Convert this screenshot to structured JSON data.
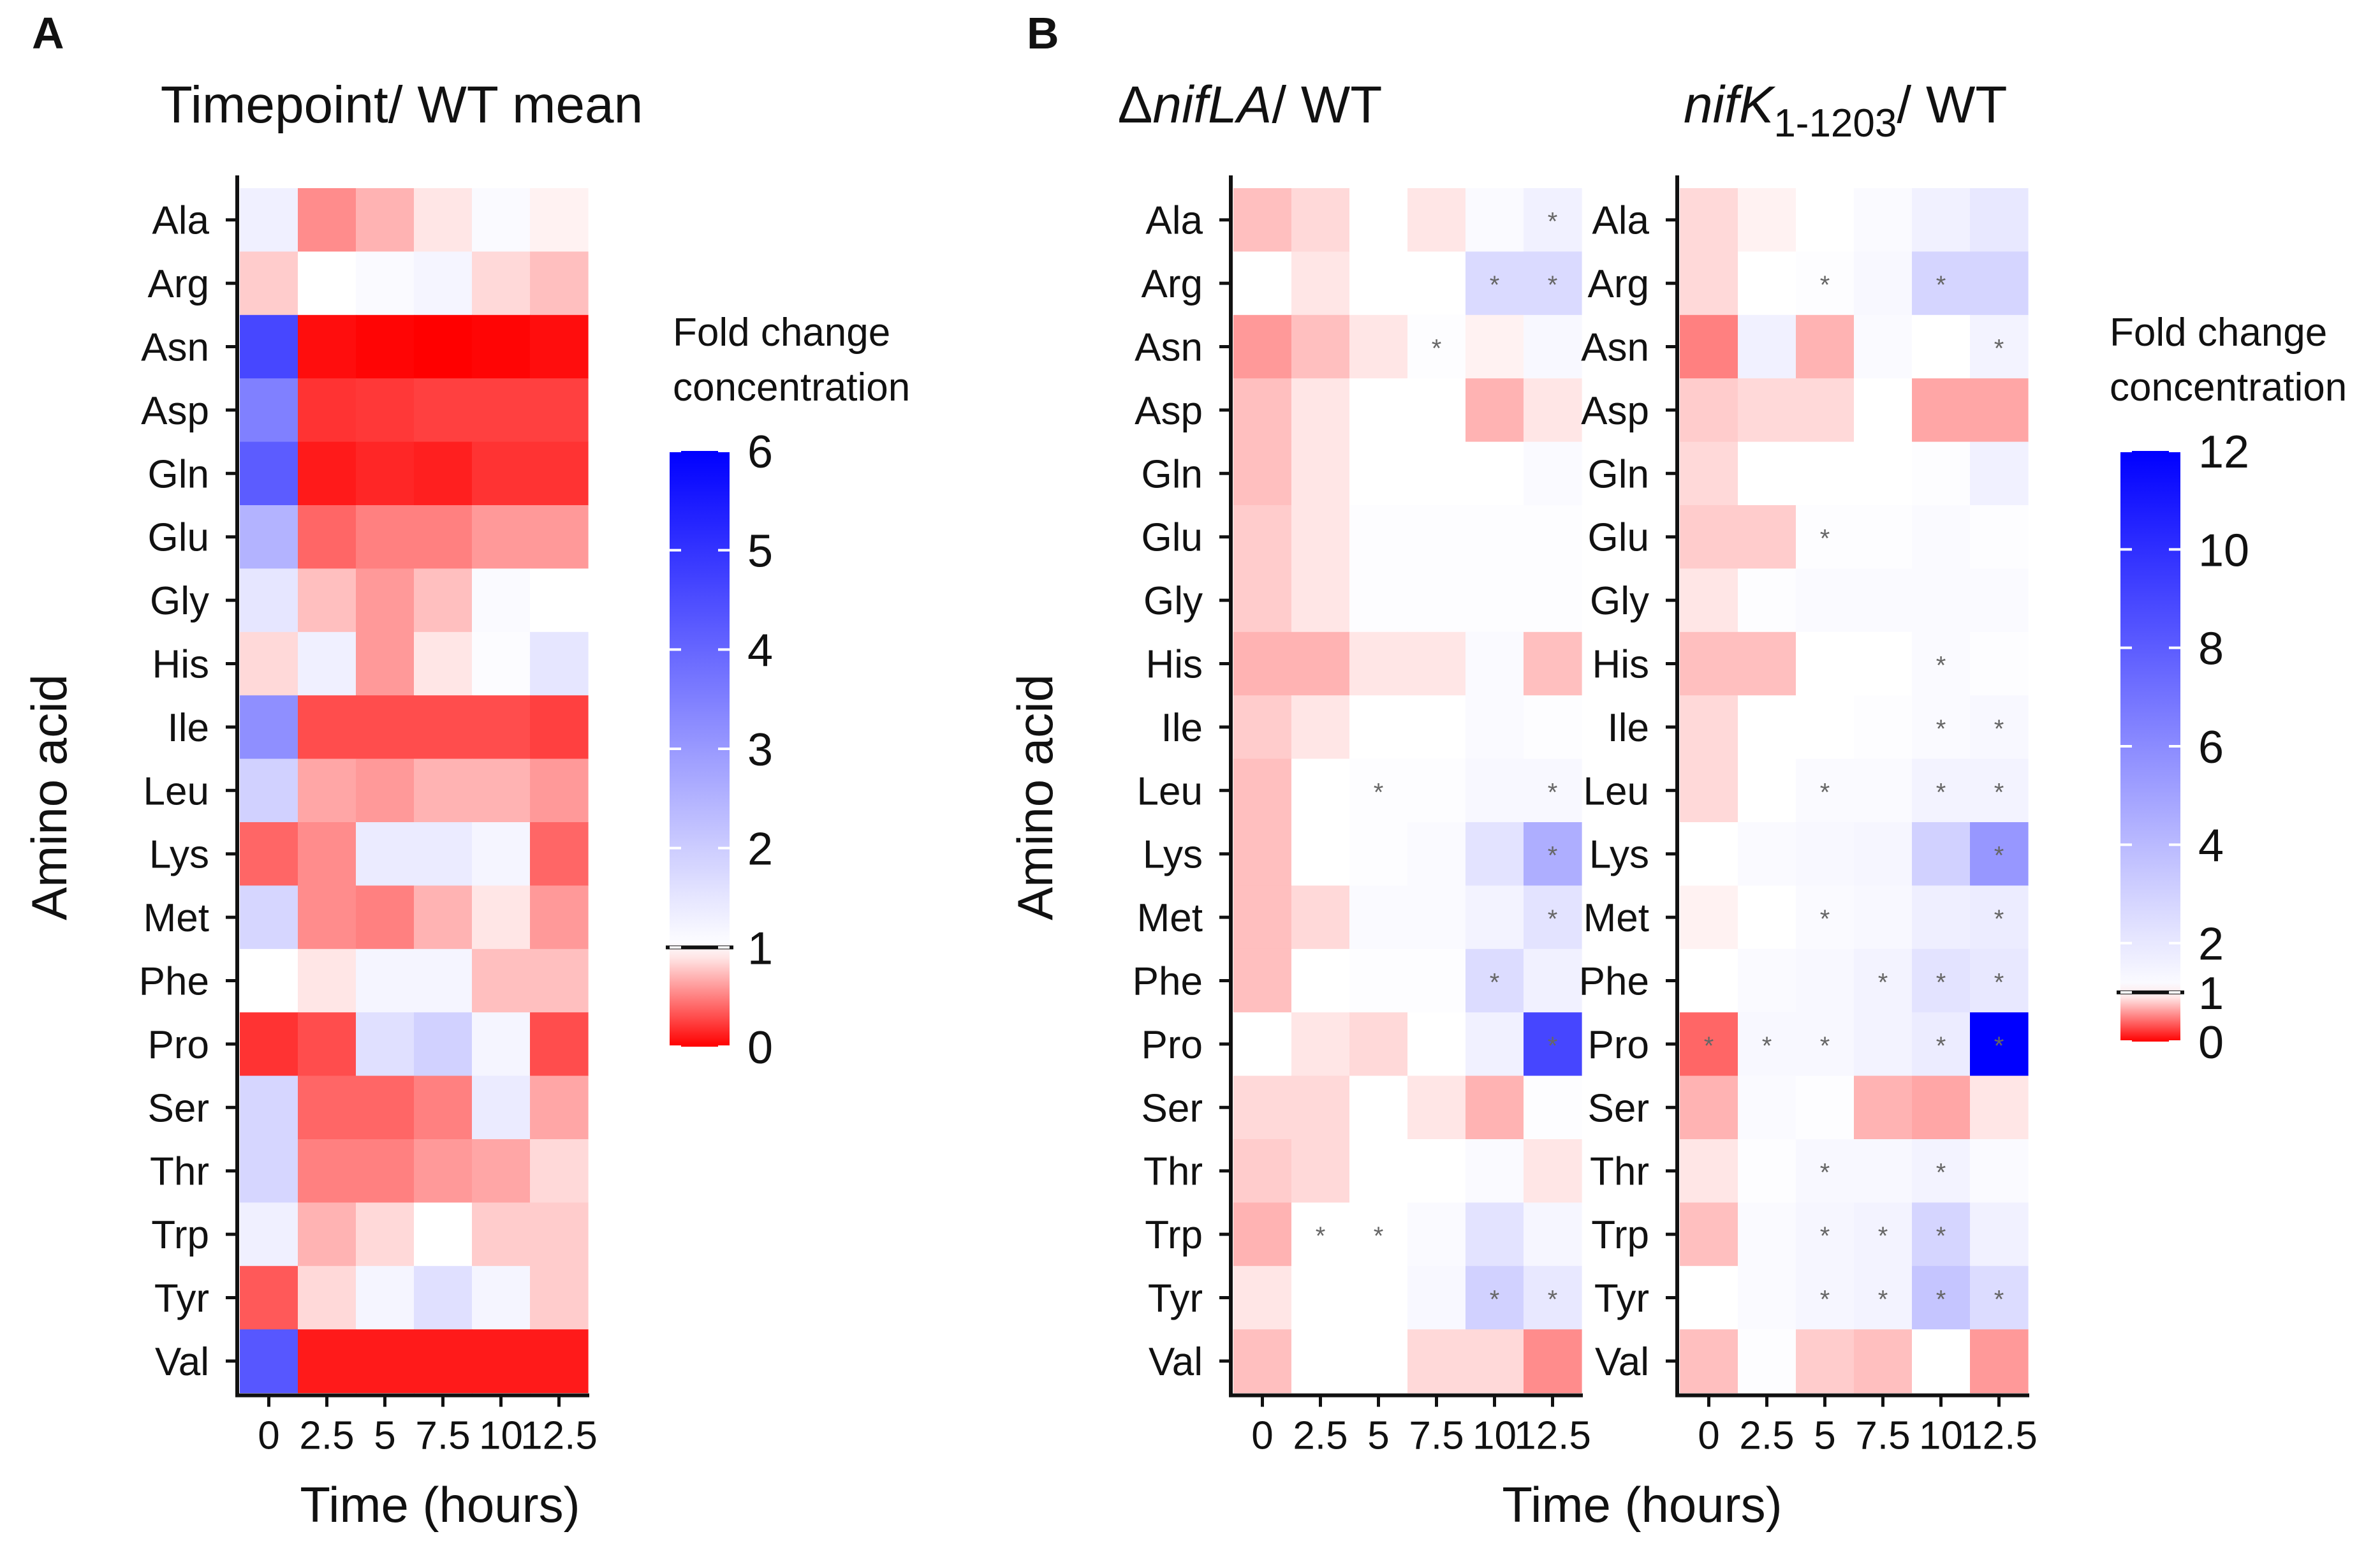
{
  "chart_data": [
    {
      "panel": "A",
      "type": "heatmap",
      "title": "Timepoint/ WT mean",
      "xlabel": "Time (hours)",
      "ylabel": "Amino acid",
      "x": [
        "0",
        "2.5",
        "5",
        "7.5",
        "10",
        "12.5"
      ],
      "y": [
        "Ala",
        "Arg",
        "Asn",
        "Asp",
        "Gln",
        "Glu",
        "Gly",
        "His",
        "Ile",
        "Leu",
        "Lys",
        "Met",
        "Phe",
        "Pro",
        "Ser",
        "Thr",
        "Trp",
        "Tyr",
        "Val"
      ],
      "values": [
        [
          1.3,
          0.55,
          0.7,
          0.9,
          1.1,
          0.95
        ],
        [
          0.8,
          1.0,
          1.1,
          1.2,
          0.85,
          0.75
        ],
        [
          4.6,
          0.05,
          0.02,
          0.0,
          0.02,
          0.05
        ],
        [
          3.5,
          0.2,
          0.22,
          0.25,
          0.25,
          0.25
        ],
        [
          4.2,
          0.1,
          0.15,
          0.12,
          0.2,
          0.2
        ],
        [
          2.5,
          0.4,
          0.5,
          0.5,
          0.6,
          0.6
        ],
        [
          1.5,
          0.75,
          0.6,
          0.75,
          1.1,
          1.0
        ],
        [
          0.85,
          1.3,
          0.6,
          0.9,
          1.05,
          1.5
        ],
        [
          3.2,
          0.3,
          0.3,
          0.3,
          0.3,
          0.25
        ],
        [
          1.9,
          0.65,
          0.6,
          0.7,
          0.7,
          0.6
        ],
        [
          0.4,
          0.55,
          1.4,
          1.4,
          1.2,
          0.4
        ],
        [
          1.8,
          0.55,
          0.5,
          0.7,
          0.9,
          0.6
        ],
        [
          1.0,
          0.9,
          1.2,
          1.2,
          0.75,
          0.75
        ],
        [
          0.2,
          0.3,
          1.6,
          1.9,
          1.2,
          0.3
        ],
        [
          1.8,
          0.4,
          0.4,
          0.5,
          1.4,
          0.65
        ],
        [
          1.8,
          0.5,
          0.5,
          0.6,
          0.65,
          0.85
        ],
        [
          1.3,
          0.7,
          0.85,
          1.0,
          0.8,
          0.8
        ],
        [
          0.35,
          0.85,
          1.2,
          1.6,
          1.2,
          0.8
        ],
        [
          4.3,
          0.1,
          0.1,
          0.1,
          0.1,
          0.1
        ]
      ],
      "colorbar": {
        "title": [
          "Fold change",
          "concentration"
        ],
        "min": 0,
        "max": 6,
        "mid": 1,
        "ticks": [
          0,
          1,
          2,
          3,
          4,
          5,
          6
        ],
        "low_color": "#ff0000",
        "mid_color": "#ffffff",
        "high_color": "#0000ff"
      }
    },
    {
      "panel": "B",
      "type": "heatmap",
      "title": {
        "prefix": "Δ",
        "italic": "nifLA",
        "suffix": "/ WT"
      },
      "xlabel": "Time (hours)",
      "ylabel": "Amino acid",
      "x": [
        "0",
        "2.5",
        "5",
        "7.5",
        "10",
        "12.5"
      ],
      "y": [
        "Ala",
        "Arg",
        "Asn",
        "Asp",
        "Gln",
        "Glu",
        "Gly",
        "His",
        "Ile",
        "Leu",
        "Lys",
        "Met",
        "Phe",
        "Pro",
        "Ser",
        "Thr",
        "Trp",
        "Tyr",
        "Val"
      ],
      "values": [
        [
          0.75,
          0.85,
          1.0,
          0.9,
          1.2,
          1.6
        ],
        [
          1.0,
          0.9,
          1.0,
          1.0,
          2.6,
          2.6
        ],
        [
          0.6,
          0.75,
          0.9,
          1.1,
          0.95,
          1.3
        ],
        [
          0.75,
          0.9,
          1.0,
          1.0,
          0.7,
          0.9
        ],
        [
          0.75,
          0.9,
          1.0,
          1.0,
          1.0,
          1.2
        ],
        [
          0.8,
          0.9,
          1.1,
          1.1,
          1.1,
          1.1
        ],
        [
          0.8,
          0.9,
          1.1,
          1.1,
          1.1,
          1.1
        ],
        [
          0.7,
          0.7,
          0.9,
          0.9,
          1.2,
          0.75
        ],
        [
          0.8,
          0.9,
          1.0,
          1.0,
          1.2,
          1.1
        ],
        [
          0.75,
          1.0,
          1.1,
          1.1,
          1.3,
          1.3
        ],
        [
          0.75,
          1.0,
          1.1,
          1.2,
          2.2,
          4.5
        ],
        [
          0.75,
          0.85,
          1.2,
          1.2,
          1.5,
          2.2
        ],
        [
          0.75,
          1.0,
          1.1,
          1.1,
          2.5,
          1.6
        ],
        [
          1.0,
          0.9,
          0.85,
          1.0,
          1.6,
          9.0
        ],
        [
          0.85,
          0.85,
          1.0,
          0.9,
          0.7,
          1.1
        ],
        [
          0.8,
          0.85,
          1.0,
          1.0,
          1.2,
          0.9
        ],
        [
          0.7,
          1.0,
          1.0,
          1.2,
          2.2,
          1.4
        ],
        [
          0.9,
          1.0,
          1.0,
          1.3,
          3.0,
          2.0
        ],
        [
          0.75,
          1.0,
          1.0,
          0.85,
          0.85,
          0.55
        ]
      ],
      "stars": [
        [
          0,
          5
        ],
        [
          1,
          4
        ],
        [
          1,
          5
        ],
        [
          2,
          3
        ],
        [
          9,
          2
        ],
        [
          9,
          5
        ],
        [
          10,
          5
        ],
        [
          11,
          5
        ],
        [
          12,
          4
        ],
        [
          13,
          5
        ],
        [
          16,
          1
        ],
        [
          16,
          2
        ],
        [
          17,
          4
        ],
        [
          17,
          5
        ]
      ],
      "star_symbol": "*"
    },
    {
      "panel": "B",
      "type": "heatmap",
      "title": {
        "italic": "nifK",
        "subscript": "1-1203",
        "suffix": "/ WT"
      },
      "xlabel": "Time (hours)",
      "ylabel": "",
      "x": [
        "0",
        "2.5",
        "5",
        "7.5",
        "10",
        "12.5"
      ],
      "y": [
        "Ala",
        "Arg",
        "Asn",
        "Asp",
        "Gln",
        "Glu",
        "Gly",
        "His",
        "Ile",
        "Leu",
        "Lys",
        "Met",
        "Phe",
        "Pro",
        "Ser",
        "Thr",
        "Trp",
        "Tyr",
        "Val"
      ],
      "values": [
        [
          0.85,
          0.95,
          1.0,
          1.2,
          1.6,
          2.0
        ],
        [
          0.85,
          1.0,
          1.1,
          1.3,
          2.8,
          2.8
        ],
        [
          0.5,
          1.6,
          0.7,
          1.2,
          1.0,
          1.5
        ],
        [
          0.8,
          0.85,
          0.85,
          1.0,
          0.65,
          0.65
        ],
        [
          0.85,
          1.0,
          1.0,
          1.0,
          1.1,
          1.6
        ],
        [
          0.8,
          0.8,
          1.1,
          1.1,
          1.2,
          1.1
        ],
        [
          0.9,
          1.1,
          1.2,
          1.2,
          1.2,
          1.2
        ],
        [
          0.75,
          0.75,
          1.0,
          1.0,
          1.2,
          1.1
        ],
        [
          0.85,
          1.0,
          1.0,
          1.1,
          1.2,
          1.3
        ],
        [
          0.85,
          1.0,
          1.2,
          1.2,
          1.5,
          1.5
        ],
        [
          1.0,
          1.2,
          1.3,
          1.4,
          3.0,
          5.5
        ],
        [
          0.95,
          1.0,
          1.2,
          1.3,
          1.7,
          1.8
        ],
        [
          1.0,
          1.2,
          1.3,
          1.5,
          2.2,
          2.0
        ],
        [
          0.4,
          1.3,
          1.3,
          1.5,
          1.8,
          12.0
        ],
        [
          0.7,
          1.2,
          1.1,
          0.7,
          0.65,
          0.9
        ],
        [
          0.9,
          1.1,
          1.3,
          1.3,
          1.5,
          1.2
        ],
        [
          0.75,
          1.2,
          1.4,
          1.5,
          2.8,
          1.6
        ],
        [
          1.0,
          1.2,
          1.4,
          1.5,
          3.5,
          2.5
        ],
        [
          0.75,
          1.1,
          0.8,
          0.75,
          1.0,
          0.6
        ]
      ],
      "stars": [
        [
          1,
          2
        ],
        [
          1,
          4
        ],
        [
          2,
          5
        ],
        [
          5,
          2
        ],
        [
          7,
          4
        ],
        [
          8,
          4
        ],
        [
          8,
          5
        ],
        [
          9,
          2
        ],
        [
          9,
          4
        ],
        [
          9,
          5
        ],
        [
          10,
          5
        ],
        [
          11,
          2
        ],
        [
          11,
          5
        ],
        [
          12,
          3
        ],
        [
          12,
          4
        ],
        [
          12,
          5
        ],
        [
          13,
          0
        ],
        [
          13,
          1
        ],
        [
          13,
          2
        ],
        [
          13,
          4
        ],
        [
          13,
          5
        ],
        [
          15,
          2
        ],
        [
          15,
          4
        ],
        [
          16,
          2
        ],
        [
          16,
          3
        ],
        [
          16,
          4
        ],
        [
          17,
          2
        ],
        [
          17,
          3
        ],
        [
          17,
          4
        ],
        [
          17,
          5
        ]
      ],
      "star_symbol": "*",
      "colorbar": {
        "title": [
          "Fold change",
          "concentration"
        ],
        "min": 0,
        "max": 12,
        "mid": 1,
        "ticks": [
          0,
          1,
          2,
          4,
          6,
          8,
          10,
          12
        ],
        "low_color": "#ff0000",
        "mid_color": "#ffffff",
        "high_color": "#0000ff"
      }
    }
  ],
  "panel_letters": [
    "A",
    "B"
  ]
}
